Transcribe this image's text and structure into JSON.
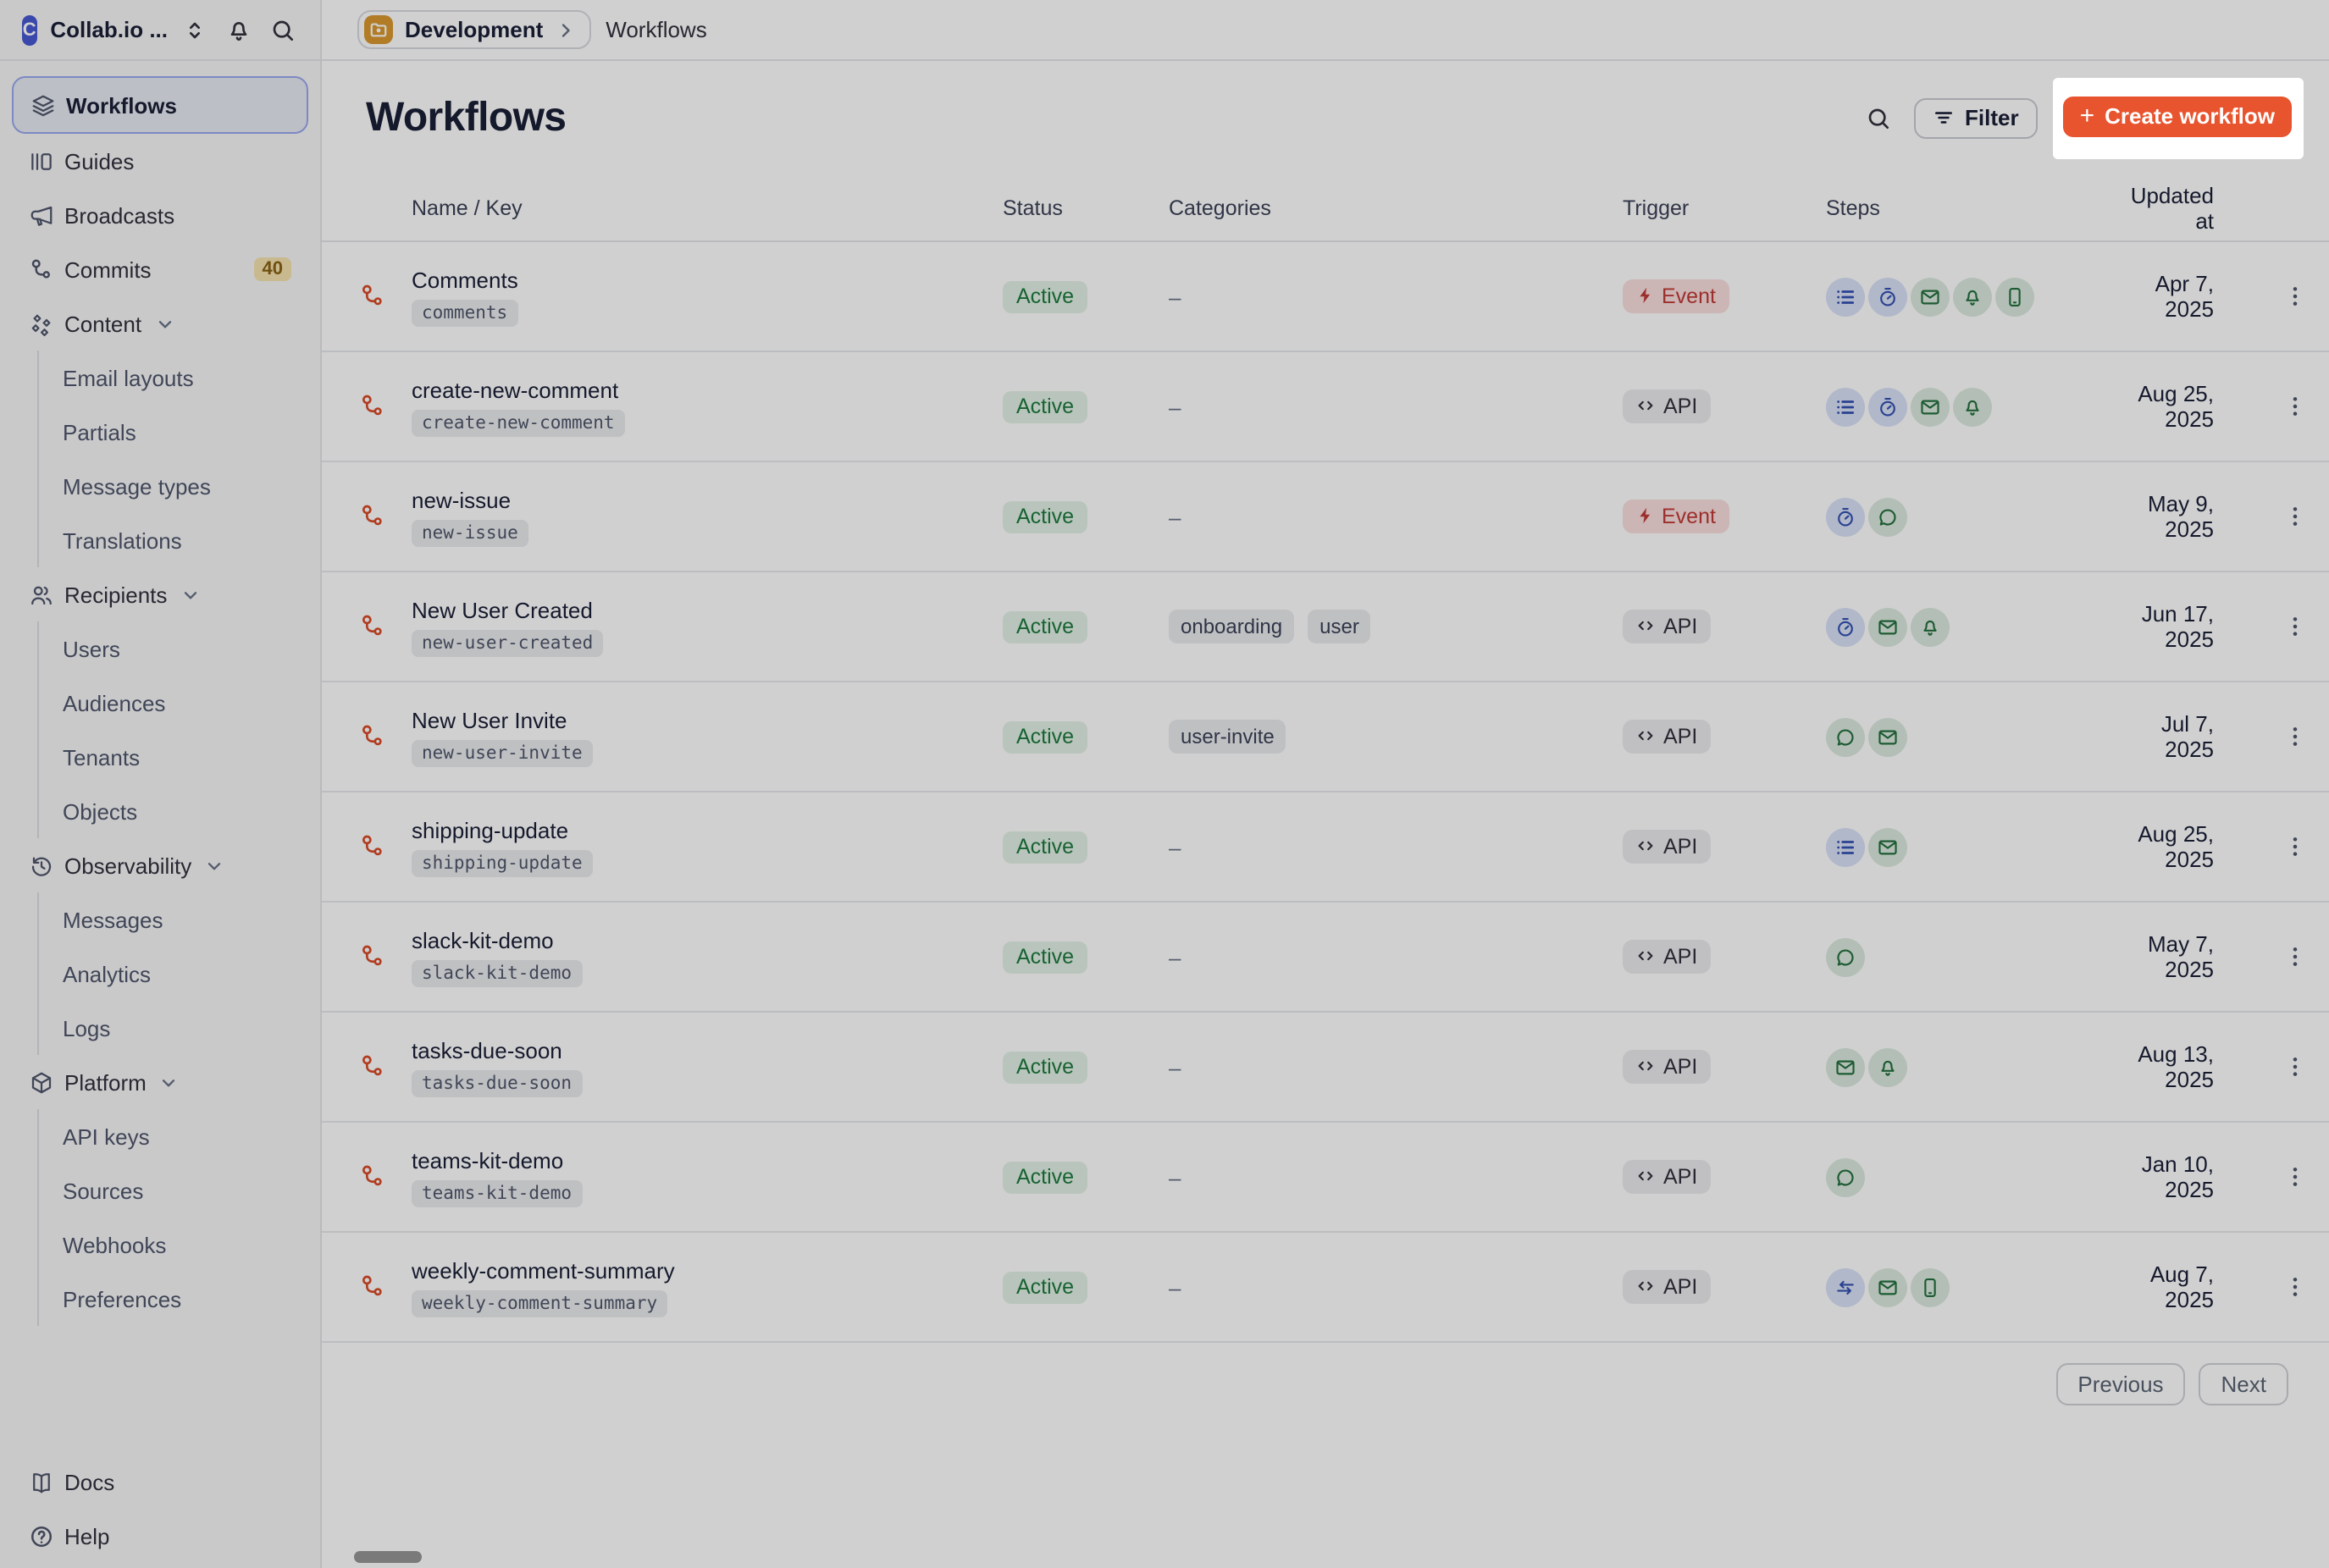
{
  "colors": {
    "accent": "#e8542e",
    "brand_blue": "#4859d2",
    "workflow_red": "#d94a26"
  },
  "topbar": {
    "org_name": "Collab.io ...",
    "env_label": "Development",
    "page_label": "Workflows"
  },
  "sidebar": {
    "items": [
      {
        "icon": "layers-icon",
        "label": "Workflows",
        "selected": true
      },
      {
        "icon": "guides-icon",
        "label": "Guides"
      },
      {
        "icon": "megaphone-icon",
        "label": "Broadcasts"
      },
      {
        "icon": "branch-icon",
        "label": "Commits",
        "badge": "40"
      },
      {
        "icon": "diamonds-icon",
        "label": "Content",
        "expandable": true,
        "children": [
          "Email layouts",
          "Partials",
          "Message types",
          "Translations"
        ]
      },
      {
        "icon": "people-icon",
        "label": "Recipients",
        "expandable": true,
        "children": [
          "Users",
          "Audiences",
          "Tenants",
          "Objects"
        ]
      },
      {
        "icon": "history-icon",
        "label": "Observability",
        "expandable": true,
        "children": [
          "Messages",
          "Analytics",
          "Logs"
        ]
      },
      {
        "icon": "box-icon",
        "label": "Platform",
        "expandable": true,
        "children": [
          "API keys",
          "Sources",
          "Webhooks",
          "Preferences"
        ]
      }
    ],
    "footer_items": [
      {
        "icon": "book-icon",
        "label": "Docs"
      },
      {
        "icon": "help-icon",
        "label": "Help"
      }
    ]
  },
  "header": {
    "title": "Workflows",
    "filter_label": "Filter",
    "create_label": "Create workflow"
  },
  "table": {
    "columns": [
      "Name / Key",
      "Status",
      "Categories",
      "Trigger",
      "Steps",
      "Updated at"
    ],
    "empty_categories_placeholder": "–",
    "rows": [
      {
        "name": "Comments",
        "key": "comments",
        "status": "Active",
        "categories": [],
        "trigger": "Event",
        "steps": [
          "list",
          "timer",
          "email",
          "bell",
          "phone"
        ],
        "updated": "Apr 7, 2025"
      },
      {
        "name": "create-new-comment",
        "key": "create-new-comment",
        "status": "Active",
        "categories": [],
        "trigger": "API",
        "steps": [
          "list",
          "timer",
          "email",
          "bell"
        ],
        "updated": "Aug 25, 2025"
      },
      {
        "name": "new-issue",
        "key": "new-issue",
        "status": "Active",
        "categories": [],
        "trigger": "Event",
        "steps": [
          "timer",
          "chat"
        ],
        "updated": "May 9, 2025"
      },
      {
        "name": "New User Created",
        "key": "new-user-created",
        "status": "Active",
        "categories": [
          "onboarding",
          "user"
        ],
        "trigger": "API",
        "steps": [
          "timer",
          "email",
          "bell"
        ],
        "updated": "Jun 17, 2025"
      },
      {
        "name": "New User Invite",
        "key": "new-user-invite",
        "status": "Active",
        "categories": [
          "user-invite"
        ],
        "trigger": "API",
        "steps": [
          "chat",
          "email"
        ],
        "updated": "Jul 7, 2025"
      },
      {
        "name": "shipping-update",
        "key": "shipping-update",
        "status": "Active",
        "categories": [],
        "trigger": "API",
        "steps": [
          "list",
          "email"
        ],
        "updated": "Aug 25, 2025"
      },
      {
        "name": "slack-kit-demo",
        "key": "slack-kit-demo",
        "status": "Active",
        "categories": [],
        "trigger": "API",
        "steps": [
          "chat"
        ],
        "updated": "May 7, 2025"
      },
      {
        "name": "tasks-due-soon",
        "key": "tasks-due-soon",
        "status": "Active",
        "categories": [],
        "trigger": "API",
        "steps": [
          "email",
          "bell"
        ],
        "updated": "Aug 13, 2025"
      },
      {
        "name": "teams-kit-demo",
        "key": "teams-kit-demo",
        "status": "Active",
        "categories": [],
        "trigger": "API",
        "steps": [
          "chat"
        ],
        "updated": "Jan 10, 2025"
      },
      {
        "name": "weekly-comment-summary",
        "key": "weekly-comment-summary",
        "status": "Active",
        "categories": [],
        "trigger": "API",
        "steps": [
          "swap",
          "email",
          "phone"
        ],
        "updated": "Aug 7, 2025"
      }
    ]
  },
  "pagination": {
    "previous_label": "Previous",
    "next_label": "Next"
  }
}
